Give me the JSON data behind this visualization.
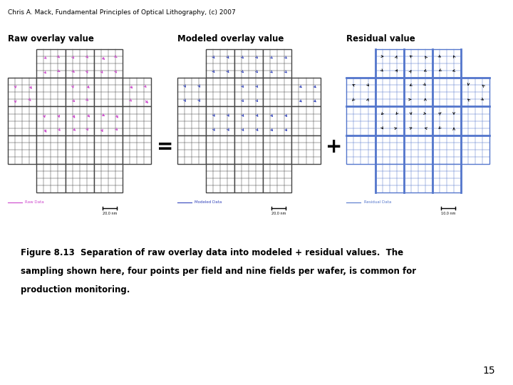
{
  "header": "Chris A. Mack, Fundamental Principles of Optical Lithography, (c) 2007",
  "title1": "Raw overlay value",
  "title2": "Modeled overlay value",
  "title3": "Residual value",
  "caption_line1": "Figure 8.13  Separation of raw overlay data into modeled + residual values.  The",
  "caption_line2": "sampling shown here, four points per field and nine fields per wafer, is common for",
  "caption_line3": "production monitoring.",
  "page_num": "15",
  "color_raw": "#cc44cc",
  "color_modeled": "#3344bb",
  "color_residual": "#111111",
  "color_grid_dark": "#444444",
  "color_grid_blue": "#5577cc",
  "scale1": "20.0 nm",
  "scale2": "20.0 nm",
  "scale3": "10.0 nm",
  "legend1": "Raw Data",
  "legend2": "Modeled Data",
  "legend3": "Residual Data"
}
